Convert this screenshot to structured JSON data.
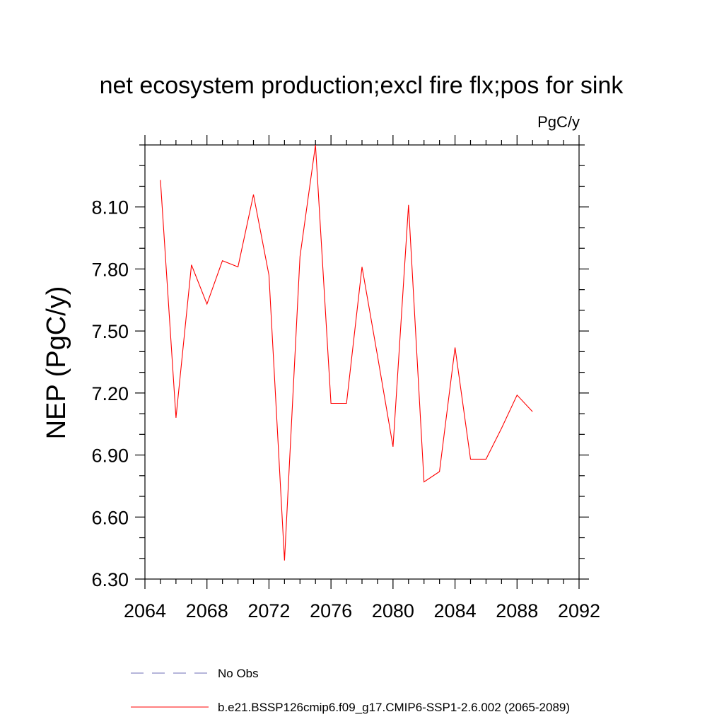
{
  "chart_data": {
    "type": "line",
    "title": "net ecosystem production;excl fire flx;pos for sink",
    "units": "PgC/y",
    "ylabel": "NEP  (PgC/y)",
    "xlabel": "",
    "xlim": [
      2064,
      2092
    ],
    "ylim": [
      6.3,
      8.4
    ],
    "xticks": [
      2064,
      2068,
      2072,
      2076,
      2080,
      2084,
      2088,
      2092
    ],
    "xtick_labels": [
      "2064",
      "2068",
      "2072",
      "2076",
      "2080",
      "2084",
      "2088",
      "2092"
    ],
    "xminor_step": 1,
    "yticks": [
      6.3,
      6.6,
      6.9,
      7.2,
      7.5,
      7.8,
      8.1
    ],
    "ytick_labels": [
      "6.30",
      "6.60",
      "6.90",
      "7.20",
      "7.50",
      "7.80",
      "8.10"
    ],
    "yminor_step": 0.1,
    "series": [
      {
        "name": "b.e21.BSSP126cmip6.f09_g17.CMIP6-SSP1-2.6.002 (2065-2089)",
        "color": "#ff0000",
        "style": "solid",
        "x": [
          2065,
          2066,
          2067,
          2068,
          2069,
          2070,
          2071,
          2072,
          2073,
          2074,
          2075,
          2076,
          2077,
          2078,
          2079,
          2080,
          2081,
          2082,
          2083,
          2084,
          2085,
          2086,
          2087,
          2088,
          2089
        ],
        "y": [
          8.23,
          7.08,
          7.82,
          7.63,
          7.84,
          7.81,
          8.16,
          7.77,
          6.39,
          7.86,
          8.4,
          7.15,
          7.15,
          7.81,
          7.38,
          6.94,
          8.11,
          6.77,
          6.82,
          7.42,
          6.88,
          6.88,
          7.03,
          7.19,
          7.11
        ]
      }
    ],
    "legend": [
      {
        "label": "No Obs",
        "color": "#6e6eb4",
        "style": "dashed"
      },
      {
        "label": "b.e21.BSSP126cmip6.f09_g17.CMIP6-SSP1-2.6.002 (2065-2089)",
        "color": "#ff0000",
        "style": "solid"
      }
    ]
  }
}
